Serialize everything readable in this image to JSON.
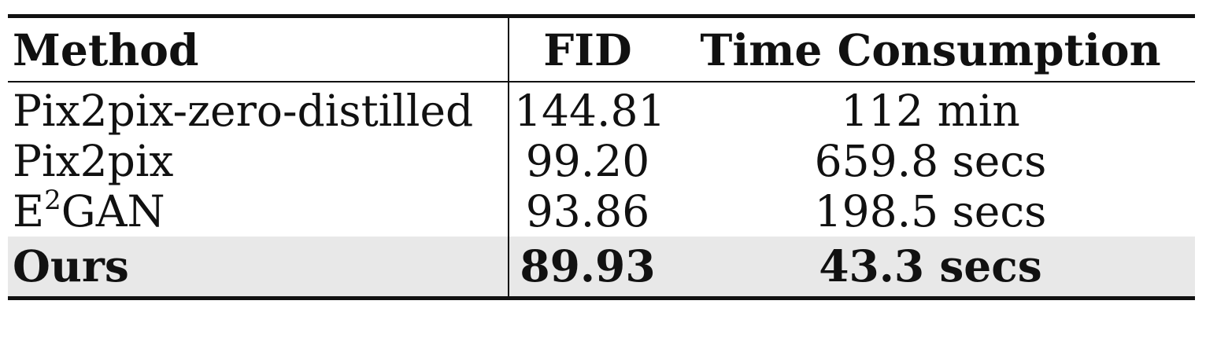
{
  "table": {
    "columns": [
      "Method",
      "FID",
      "Time Consumption"
    ],
    "rows": [
      {
        "method": "Pix2pix-zero-distilled",
        "fid": "144.81",
        "time": "112 min"
      },
      {
        "method": "Pix2pix",
        "fid": "99.20",
        "time": "659.8 secs"
      },
      {
        "method_base": "E",
        "method_sup": "2",
        "method_rest": "GAN",
        "fid": "93.86",
        "time": "198.5 secs"
      },
      {
        "method": "Ours",
        "fid": "89.93",
        "time": "43.3 secs",
        "highlighted": true
      }
    ],
    "highlight_color": "#e8e8e8"
  }
}
